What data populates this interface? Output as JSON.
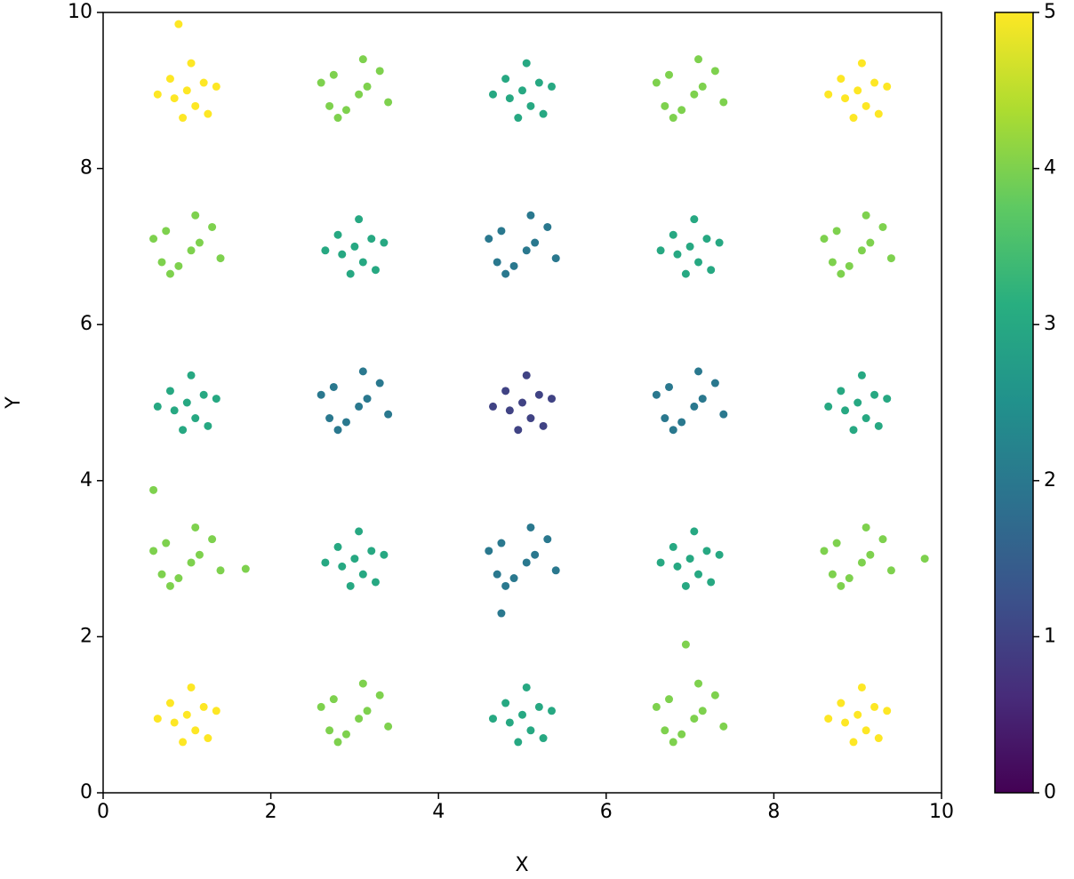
{
  "chart_data": {
    "type": "scatter",
    "x_label": "X",
    "y_label": "Y",
    "colormap": "viridis",
    "xlim": [
      0,
      10
    ],
    "xticks": [
      0,
      2,
      4,
      6,
      8,
      10
    ],
    "ylim": [
      0,
      10
    ],
    "yticks": [
      0,
      2,
      4,
      6,
      8,
      10
    ],
    "clim": [
      0,
      5
    ],
    "cticks": [
      0,
      1,
      2,
      3,
      4,
      5
    ],
    "x": [
      1,
      1.2,
      0.8,
      1.1,
      0.85,
      1.35,
      0.65,
      1.05,
      0.95,
      1.25,
      3.05,
      2.75,
      3.3,
      2.9,
      3.15,
      2.6,
      3.4,
      2.8,
      3.1,
      2.7,
      5,
      5.2,
      4.8,
      5.1,
      4.85,
      5.35,
      4.65,
      5.05,
      4.95,
      5.25,
      7.05,
      6.75,
      7.3,
      6.9,
      7.15,
      6.6,
      7.4,
      6.8,
      7.1,
      6.7,
      9,
      9.2,
      8.8,
      9.1,
      8.85,
      9.35,
      8.65,
      9.05,
      8.95,
      9.25,
      1.05,
      0.75,
      1.3,
      0.9,
      1.15,
      0.6,
      1.4,
      0.8,
      1.1,
      0.7,
      3,
      3.2,
      2.8,
      3.1,
      2.85,
      3.35,
      2.65,
      3.05,
      2.95,
      3.25,
      5.05,
      4.75,
      5.3,
      4.9,
      5.15,
      4.6,
      5.4,
      4.8,
      5.1,
      4.7,
      7,
      7.2,
      6.8,
      7.1,
      6.85,
      7.35,
      6.65,
      7.05,
      6.95,
      7.25,
      9.05,
      8.75,
      9.3,
      8.9,
      9.15,
      8.6,
      9.4,
      8.8,
      9.1,
      8.7,
      1,
      1.2,
      0.8,
      1.1,
      0.85,
      1.35,
      0.65,
      1.05,
      0.95,
      1.25,
      3.05,
      2.75,
      3.3,
      2.9,
      3.15,
      2.6,
      3.4,
      2.8,
      3.1,
      2.7,
      5,
      5.2,
      4.8,
      5.1,
      4.85,
      5.35,
      4.65,
      5.05,
      4.95,
      5.25,
      7.05,
      6.75,
      7.3,
      6.9,
      7.15,
      6.6,
      7.4,
      6.8,
      7.1,
      6.7,
      9,
      9.2,
      8.8,
      9.1,
      8.85,
      9.35,
      8.65,
      9.05,
      8.95,
      9.25,
      1.05,
      0.75,
      1.3,
      0.9,
      1.15,
      0.6,
      1.4,
      0.8,
      1.1,
      0.7,
      3,
      3.2,
      2.8,
      3.1,
      2.85,
      3.35,
      2.65,
      3.05,
      2.95,
      3.25,
      5.05,
      4.75,
      5.3,
      4.9,
      5.15,
      4.6,
      5.4,
      4.8,
      5.1,
      4.7,
      7,
      7.2,
      6.8,
      7.1,
      6.85,
      7.35,
      6.65,
      7.05,
      6.95,
      7.25,
      9.05,
      8.75,
      9.3,
      8.9,
      9.15,
      8.6,
      9.4,
      8.8,
      9.1,
      8.7,
      1,
      1.2,
      0.8,
      1.1,
      0.85,
      1.35,
      0.65,
      1.05,
      0.95,
      1.25,
      3.05,
      2.75,
      3.3,
      2.9,
      3.15,
      2.6,
      3.4,
      2.8,
      3.1,
      2.7,
      5,
      5.2,
      4.8,
      5.1,
      4.85,
      5.35,
      4.65,
      5.05,
      4.95,
      5.25,
      7.05,
      6.75,
      7.3,
      6.9,
      7.15,
      6.6,
      7.4,
      6.8,
      7.1,
      6.7,
      9,
      9.2,
      8.8,
      9.1,
      8.85,
      9.35,
      8.65,
      9.05,
      8.95,
      9.25,
      0.9,
      0.6,
      6.95,
      9.8,
      4.75,
      1.7
    ],
    "y": [
      9,
      9.1,
      9.15,
      8.8,
      8.9,
      9.05,
      8.95,
      9.35,
      8.65,
      8.7,
      8.95,
      9.2,
      9.25,
      8.75,
      9.05,
      9.1,
      8.85,
      8.65,
      9.4,
      8.8,
      9,
      9.1,
      9.15,
      8.8,
      8.9,
      9.05,
      8.95,
      9.35,
      8.65,
      8.7,
      8.95,
      9.2,
      9.25,
      8.75,
      9.05,
      9.1,
      8.85,
      8.65,
      9.4,
      8.8,
      9,
      9.1,
      9.15,
      8.8,
      8.9,
      9.05,
      8.95,
      9.35,
      8.65,
      8.7,
      6.95,
      7.2,
      7.25,
      6.75,
      7.05,
      7.1,
      6.85,
      6.65,
      7.4,
      6.8,
      7,
      7.1,
      7.15,
      6.8,
      6.9,
      7.05,
      6.95,
      7.35,
      6.65,
      6.7,
      6.95,
      7.2,
      7.25,
      6.75,
      7.05,
      7.1,
      6.85,
      6.65,
      7.4,
      6.8,
      7,
      7.1,
      7.15,
      6.8,
      6.9,
      7.05,
      6.95,
      7.35,
      6.65,
      6.7,
      6.95,
      7.2,
      7.25,
      6.75,
      7.05,
      7.1,
      6.85,
      6.65,
      7.4,
      6.8,
      5,
      5.1,
      5.15,
      4.8,
      4.9,
      5.05,
      4.95,
      5.35,
      4.65,
      4.7,
      4.95,
      5.2,
      5.25,
      4.75,
      5.05,
      5.1,
      4.85,
      4.65,
      5.4,
      4.8,
      5,
      5.1,
      5.15,
      4.8,
      4.9,
      5.05,
      4.95,
      5.35,
      4.65,
      4.7,
      4.95,
      5.2,
      5.25,
      4.75,
      5.05,
      5.1,
      4.85,
      4.65,
      5.4,
      4.8,
      5,
      5.1,
      5.15,
      4.8,
      4.9,
      5.05,
      4.95,
      5.35,
      4.65,
      4.7,
      2.95,
      3.2,
      3.25,
      2.75,
      3.05,
      3.1,
      2.85,
      2.65,
      3.4,
      2.8,
      3,
      3.1,
      3.15,
      2.8,
      2.9,
      3.05,
      2.95,
      3.35,
      2.65,
      2.7,
      2.95,
      3.2,
      3.25,
      2.75,
      3.05,
      3.1,
      2.85,
      2.65,
      3.4,
      2.8,
      3,
      3.1,
      3.15,
      2.8,
      2.9,
      3.05,
      2.95,
      3.35,
      2.65,
      2.7,
      2.95,
      3.2,
      3.25,
      2.75,
      3.05,
      3.1,
      2.85,
      2.65,
      3.4,
      2.8,
      1,
      1.1,
      1.15,
      0.8,
      0.9,
      1.05,
      0.95,
      1.35,
      0.65,
      0.7,
      0.95,
      1.2,
      1.25,
      0.75,
      1.05,
      1.1,
      0.85,
      0.65,
      1.4,
      0.8,
      1,
      1.1,
      1.15,
      0.8,
      0.9,
      1.05,
      0.95,
      1.35,
      0.65,
      0.7,
      0.95,
      1.2,
      1.25,
      0.75,
      1.05,
      1.1,
      0.85,
      0.65,
      1.4,
      0.8,
      1,
      1.1,
      1.15,
      0.8,
      0.9,
      1.05,
      0.95,
      1.35,
      0.65,
      0.7,
      9.85,
      3.88,
      1.9,
      3.0,
      2.3,
      2.87
    ],
    "c": [
      5,
      5,
      5,
      5,
      5,
      5,
      5,
      5,
      5,
      5,
      4,
      4,
      4,
      4,
      4,
      4,
      4,
      4,
      4,
      4,
      3,
      3,
      3,
      3,
      3,
      3,
      3,
      3,
      3,
      3,
      4,
      4,
      4,
      4,
      4,
      4,
      4,
      4,
      4,
      4,
      5,
      5,
      5,
      5,
      5,
      5,
      5,
      5,
      5,
      5,
      4,
      4,
      4,
      4,
      4,
      4,
      4,
      4,
      4,
      4,
      3,
      3,
      3,
      3,
      3,
      3,
      3,
      3,
      3,
      3,
      2,
      2,
      2,
      2,
      2,
      2,
      2,
      2,
      2,
      2,
      3,
      3,
      3,
      3,
      3,
      3,
      3,
      3,
      3,
      3,
      4,
      4,
      4,
      4,
      4,
      4,
      4,
      4,
      4,
      4,
      3,
      3,
      3,
      3,
      3,
      3,
      3,
      3,
      3,
      3,
      2,
      2,
      2,
      2,
      2,
      2,
      2,
      2,
      2,
      2,
      1,
      1,
      1,
      1,
      1,
      1,
      1,
      1,
      1,
      1,
      2,
      2,
      2,
      2,
      2,
      2,
      2,
      2,
      2,
      2,
      3,
      3,
      3,
      3,
      3,
      3,
      3,
      3,
      3,
      3,
      4,
      4,
      4,
      4,
      4,
      4,
      4,
      4,
      4,
      4,
      3,
      3,
      3,
      3,
      3,
      3,
      3,
      3,
      3,
      3,
      2,
      2,
      2,
      2,
      2,
      2,
      2,
      2,
      2,
      2,
      3,
      3,
      3,
      3,
      3,
      3,
      3,
      3,
      3,
      3,
      4,
      4,
      4,
      4,
      4,
      4,
      4,
      4,
      4,
      4,
      5,
      5,
      5,
      5,
      5,
      5,
      5,
      5,
      5,
      5,
      4,
      4,
      4,
      4,
      4,
      4,
      4,
      4,
      4,
      4,
      3,
      3,
      3,
      3,
      3,
      3,
      3,
      3,
      3,
      3,
      4,
      4,
      4,
      4,
      4,
      4,
      4,
      4,
      4,
      4,
      5,
      5,
      5,
      5,
      5,
      5,
      5,
      5,
      5,
      5,
      5,
      4,
      4,
      4,
      2,
      4
    ]
  }
}
